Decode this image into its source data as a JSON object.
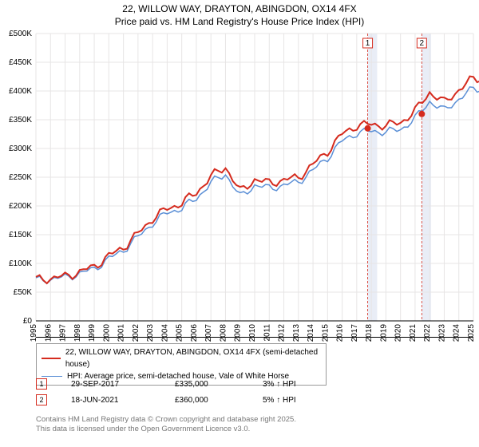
{
  "title": {
    "line1": "22, WILLOW WAY, DRAYTON, ABINGDON, OX14 4FX",
    "line2": "Price paid vs. HM Land Registry's House Price Index (HPI)"
  },
  "chart": {
    "type": "line",
    "background": "#ffffff",
    "grid_color": "#e7e5e5",
    "ylim": [
      0,
      500000
    ],
    "ytick_step": 50000,
    "ytick_labels": [
      "£0",
      "£50K",
      "£100K",
      "£150K",
      "£200K",
      "£250K",
      "£300K",
      "£350K",
      "£400K",
      "£450K",
      "£500K"
    ],
    "x_years": [
      1995,
      1996,
      1997,
      1998,
      1999,
      2000,
      2001,
      2002,
      2003,
      2004,
      2005,
      2006,
      2007,
      2008,
      2009,
      2010,
      2011,
      2012,
      2013,
      2014,
      2015,
      2016,
      2017,
      2018,
      2019,
      2020,
      2021,
      2022,
      2023,
      2024,
      2025
    ],
    "series": [
      {
        "name": "subject",
        "label": "22, WILLOW WAY, DRAYTON, ABINGDON, OX14 4FX (semi-detached house)",
        "color": "#d52b1e",
        "width": 2,
        "values": [
          72000,
          74000,
          77600,
          85000,
          94800,
          113000,
          128000,
          152000,
          178000,
          195000,
          205000,
          223000,
          251000,
          268000,
          225000,
          246000,
          240000,
          245000,
          250000,
          272000,
          295000,
          325000,
          340000,
          342000,
          340000,
          345000,
          365000,
          398000,
          380000,
          402000,
          422000
        ]
      },
      {
        "name": "hpi",
        "label": "HPI: Average price, semi-detached house, Vale of White Horse",
        "color": "#5b8fd6",
        "width": 1.5,
        "values": [
          71000,
          72500,
          76000,
          82000,
          91000,
          108000,
          123000,
          146000,
          170000,
          188000,
          196000,
          213000,
          240000,
          256000,
          216000,
          236000,
          231000,
          236000,
          242000,
          262000,
          284000,
          313000,
          327000,
          330000,
          329000,
          333000,
          352000,
          382000,
          366000,
          386000,
          404000
        ]
      }
    ],
    "sale_markers": [
      {
        "num": 1,
        "year": 2017.75,
        "price": 335000,
        "shade_to": 2018.4
      },
      {
        "num": 2,
        "year": 2021.46,
        "price": 360000,
        "shade_to": 2022.1
      }
    ],
    "marker_line_color": "#d52b1e",
    "marker_dot_color": "#d52b1e",
    "shade_color": "#e9edf6"
  },
  "legend": {
    "items": [
      {
        "color": "#d52b1e",
        "width": 2,
        "text": "22, WILLOW WAY, DRAYTON, ABINGDON, OX14 4FX (semi-detached house)"
      },
      {
        "color": "#5b8fd6",
        "width": 1.5,
        "text": "HPI: Average price, semi-detached house, Vale of White Horse"
      }
    ]
  },
  "sales": [
    {
      "num": "1",
      "date": "29-SEP-2017",
      "price": "£335,000",
      "diff": "3% ↑ HPI"
    },
    {
      "num": "2",
      "date": "18-JUN-2021",
      "price": "£360,000",
      "diff": "5% ↑ HPI"
    }
  ],
  "footer": {
    "line1": "Contains HM Land Registry data © Crown copyright and database right 2025.",
    "line2": "This data is licensed under the Open Government Licence v3.0."
  }
}
